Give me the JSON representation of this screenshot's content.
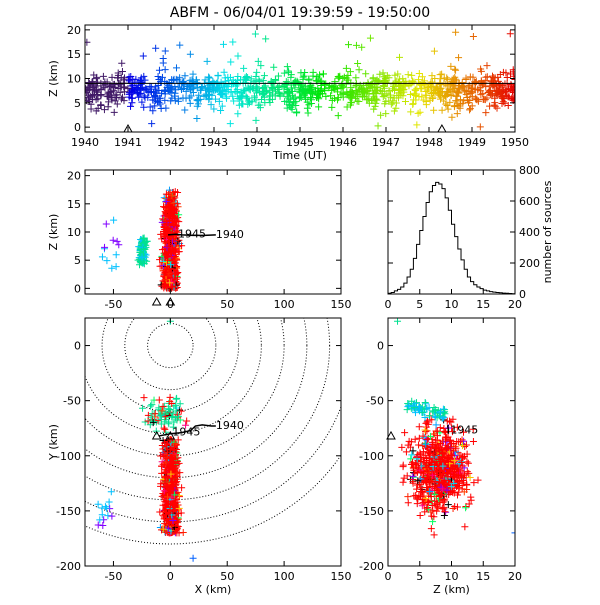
{
  "title": "ABFM - 06/04/01 19:39:59 - 19:50:00",
  "chart_data": [
    {
      "id": "time-height",
      "type": "scatter",
      "xlabel": "Time (UT)",
      "ylabel": "Z (km)",
      "xlim": [
        1940,
        1950
      ],
      "ylim": [
        -1,
        21
      ],
      "xticks": [
        "1940",
        "1941",
        "1942",
        "1943",
        "1944",
        "1945",
        "1946",
        "1947",
        "1948",
        "1949",
        "1950"
      ],
      "yticks": [
        "0",
        "5",
        "10",
        "15",
        "20"
      ],
      "color_by": "time",
      "reference_line_z": 9,
      "station_markers_x": [
        1941.0,
        1948.3
      ],
      "point_cloud": {
        "count": 1200,
        "z_mean": 7.5,
        "z_sd": 1.8,
        "z_outlier_range": [
          0,
          20
        ]
      }
    },
    {
      "id": "x-z",
      "type": "scatter",
      "xlabel": "",
      "ylabel": "Z (km)",
      "xlim": [
        -75,
        150
      ],
      "ylim": [
        -1,
        21
      ],
      "xticks": [
        "-50",
        "0",
        "50",
        "100",
        "150"
      ],
      "yticks": [
        "0",
        "5",
        "10",
        "15",
        "20"
      ],
      "main_cluster": {
        "x_center": 0,
        "x_sd": 3,
        "z_range": [
          0,
          18
        ]
      },
      "secondary_cluster": {
        "x_center": -25,
        "x_sd": 2,
        "z_range": [
          4,
          9
        ]
      },
      "aircraft_track": {
        "x": [
          -2,
          5,
          10,
          20,
          30,
          40
        ],
        "z": [
          9.5,
          9.6,
          9.5,
          9.4,
          9.4,
          9.5
        ],
        "labels": [
          "1945",
          "1940"
        ]
      },
      "station_markers_x": [
        -12,
        0
      ]
    },
    {
      "id": "z-histogram",
      "type": "bar",
      "xlabel": "",
      "ylabel": "number of sources",
      "xlim": [
        0,
        20
      ],
      "ylim": [
        0,
        800
      ],
      "xticks": [
        "0",
        "5",
        "10",
        "15",
        "20"
      ],
      "yticks": [
        "0",
        "200",
        "400",
        "600",
        "800"
      ],
      "bin_width": 0.5,
      "bin_starts": [
        0,
        0.5,
        1,
        1.5,
        2,
        2.5,
        3,
        3.5,
        4,
        4.5,
        5,
        5.5,
        6,
        6.5,
        7,
        7.5,
        8,
        8.5,
        9,
        9.5,
        10,
        10.5,
        11,
        11.5,
        12,
        12.5,
        13,
        13.5,
        14,
        14.5,
        15,
        15.5,
        16,
        16.5,
        17,
        17.5,
        18,
        18.5,
        19,
        19.5
      ],
      "values": [
        5,
        10,
        20,
        30,
        45,
        70,
        110,
        160,
        230,
        320,
        410,
        500,
        590,
        660,
        700,
        720,
        710,
        680,
        620,
        540,
        450,
        370,
        290,
        220,
        160,
        110,
        80,
        60,
        45,
        35,
        25,
        20,
        15,
        12,
        10,
        8,
        6,
        5,
        3,
        2
      ]
    },
    {
      "id": "x-y",
      "type": "scatter",
      "xlabel": "X (km)",
      "ylabel": "Y (km)",
      "xlim": [
        -75,
        150
      ],
      "ylim": [
        -200,
        25
      ],
      "xticks": [
        "-50",
        "0",
        "50",
        "100",
        "150"
      ],
      "yticks": [
        "0",
        "-50",
        "-100",
        "-150",
        "-200"
      ],
      "range_rings_km": [
        20,
        40,
        60,
        80,
        100,
        120,
        140,
        160,
        180
      ],
      "ring_center": [
        0,
        0
      ],
      "main_cluster": {
        "x_center": 0,
        "x_sd": 3,
        "y_range": [
          -170,
          -85
        ]
      },
      "northern_cluster": {
        "x_center": -5,
        "y_center": -63,
        "spread": 8
      },
      "aircraft_track": {
        "x": [
          -10,
          0,
          10,
          18,
          22,
          28,
          36,
          40
        ],
        "y": [
          -82,
          -80,
          -79,
          -77,
          -73,
          -72,
          -73,
          -73
        ],
        "labels": [
          "1945",
          "1940"
        ]
      },
      "station_markers": [
        {
          "x": -12,
          "y": -82
        },
        {
          "x": 0,
          "y": -82
        }
      ]
    },
    {
      "id": "z-y",
      "type": "scatter",
      "xlabel": "Z (km)",
      "ylabel": "",
      "xlim": [
        0,
        20
      ],
      "ylim": [
        -200,
        25
      ],
      "xticks": [
        "0",
        "5",
        "10",
        "15",
        "20"
      ],
      "yticks": [
        "0",
        "-50",
        "-100",
        "-150",
        "-200"
      ],
      "main_cluster": {
        "z_center": 8,
        "y_center": -112,
        "z_sd": 2.2,
        "y_sd": 18
      },
      "aircraft_track": {
        "z": [
          9.5,
          9.5,
          9.4,
          9.5
        ],
        "y": [
          -80,
          -76,
          -73,
          -72
        ],
        "labels": [
          "1945"
        ]
      },
      "station_markers": [
        {
          "z": 0,
          "y": -82
        }
      ]
    }
  ]
}
